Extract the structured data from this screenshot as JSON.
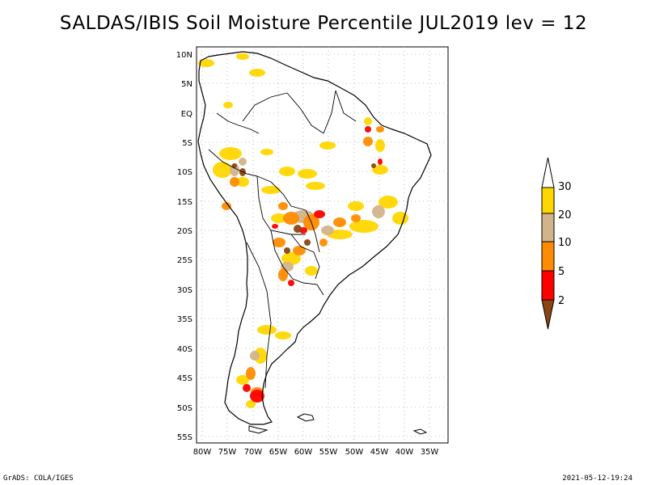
{
  "title": "SALDAS/IBIS Soil Moisture Percentile JUL2019 lev = 12",
  "lat_ticks": [
    "10N",
    "5N",
    "EQ",
    "5S",
    "10S",
    "15S",
    "20S",
    "25S",
    "30S",
    "35S",
    "40S",
    "45S",
    "50S",
    "55S"
  ],
  "lon_ticks": [
    "80W",
    "75W",
    "70W",
    "65W",
    "60W",
    "55W",
    "50W",
    "45W",
    "40W",
    "35W"
  ],
  "legend": {
    "labels": [
      "30",
      "20",
      "10",
      "5",
      "2"
    ],
    "colors": {
      "above_30": "#ffffff",
      "20_30": "#ffd700",
      "10_20": "#d2b48c",
      "5_10": "#ff8c00",
      "2_5": "#ff0000",
      "below_2": "#8b4513"
    }
  },
  "footer": {
    "left": "GrADS: COLA/IGES",
    "right": "2021-05-12-19:24"
  }
}
